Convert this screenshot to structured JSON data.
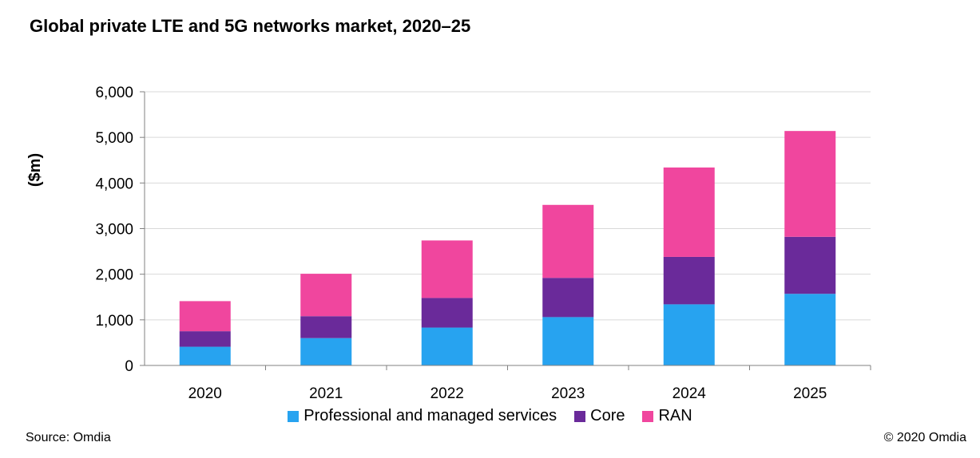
{
  "title": "Global private LTE and 5G networks market, 2020–25",
  "source": "Source: Omdia",
  "copyright": "© 2020 Omdia",
  "chart_data": {
    "type": "bar",
    "stacked": true,
    "categories": [
      "2020",
      "2021",
      "2022",
      "2023",
      "2024",
      "2025"
    ],
    "series": [
      {
        "name": "Professional and managed services",
        "color": "#27a3f0",
        "values": [
          410,
          600,
          830,
          1060,
          1340,
          1570
        ]
      },
      {
        "name": "Core",
        "color": "#6a2a9a",
        "values": [
          340,
          480,
          650,
          860,
          1040,
          1250
        ]
      },
      {
        "name": "RAN",
        "color": "#f0469e",
        "values": [
          660,
          930,
          1260,
          1600,
          1960,
          2320
        ]
      }
    ],
    "ylabel": "($m)",
    "xlabel": "",
    "ylim": [
      0,
      6000
    ],
    "yticks": [
      "0",
      "1,000",
      "2,000",
      "3,000",
      "4,000",
      "5,000",
      "6,000"
    ],
    "grid": true,
    "legend_position": "bottom"
  }
}
